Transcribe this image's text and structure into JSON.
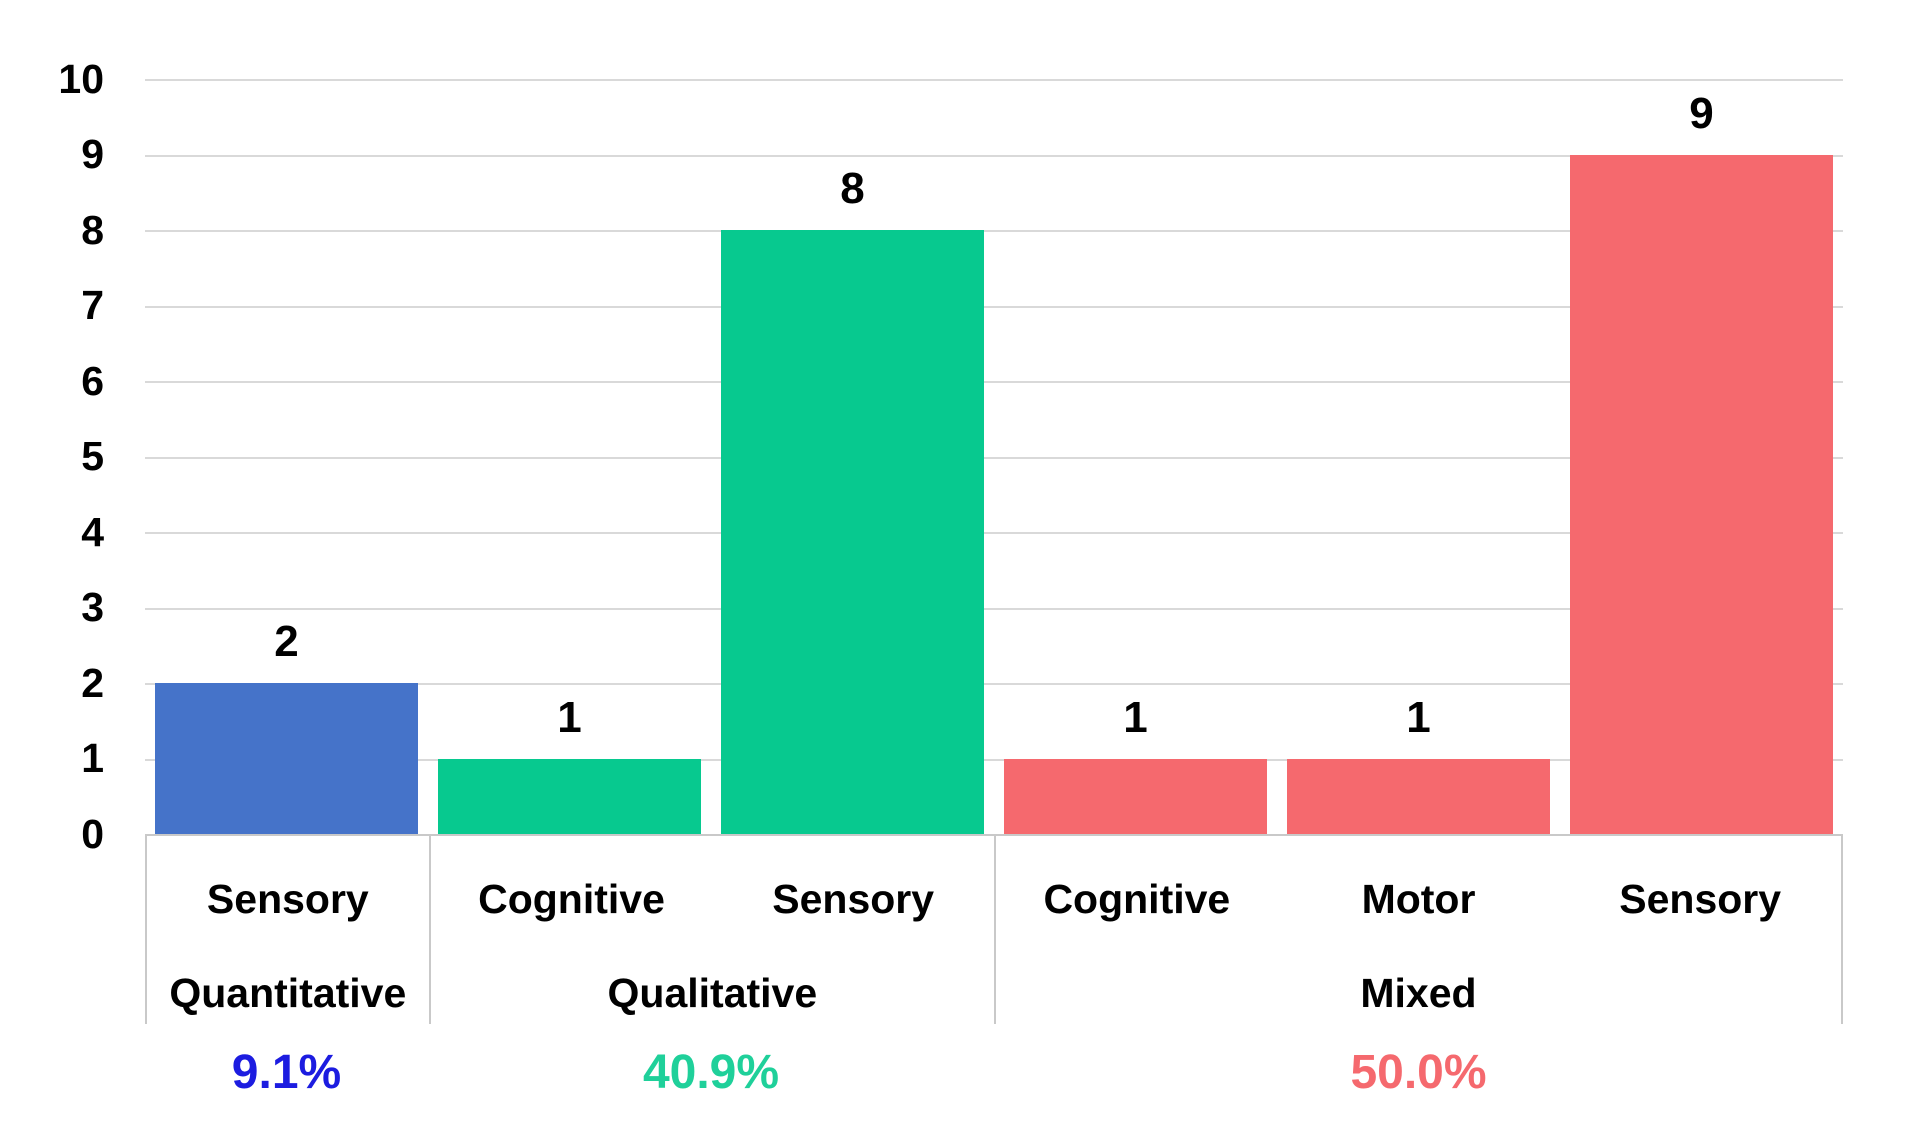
{
  "chart_data": {
    "type": "bar",
    "title": "",
    "xlabel": "",
    "ylabel": "",
    "ylim": [
      0,
      10
    ],
    "grid": true,
    "legend": "none",
    "y_ticks": [
      10,
      9,
      8,
      7,
      6,
      5,
      4,
      3,
      2,
      1,
      0
    ],
    "categories": [
      "Sensory",
      "Cognitive",
      "Sensory",
      "Cognitive",
      "Motor",
      "Sensory"
    ],
    "values": [
      2,
      1,
      8,
      1,
      1,
      9
    ],
    "bar_colors": [
      "#4573C9",
      "#07C98F",
      "#07C98F",
      "#F5696E",
      "#F5696E",
      "#F5696E"
    ],
    "groups": [
      {
        "label": "Quantitative",
        "span": 1,
        "percent": "9.1%",
        "percent_color": "#1C1CE0"
      },
      {
        "label": "Qualitative",
        "span": 2,
        "percent": "40.9%",
        "percent_color": "#1FD09A"
      },
      {
        "label": "Mixed",
        "span": 3,
        "percent": "50.0%",
        "percent_color": "#F5696E"
      }
    ],
    "colors": {
      "gridline": "#D9D9D9",
      "axis_border": "#C9C9C9",
      "label_text": "#000000"
    }
  }
}
